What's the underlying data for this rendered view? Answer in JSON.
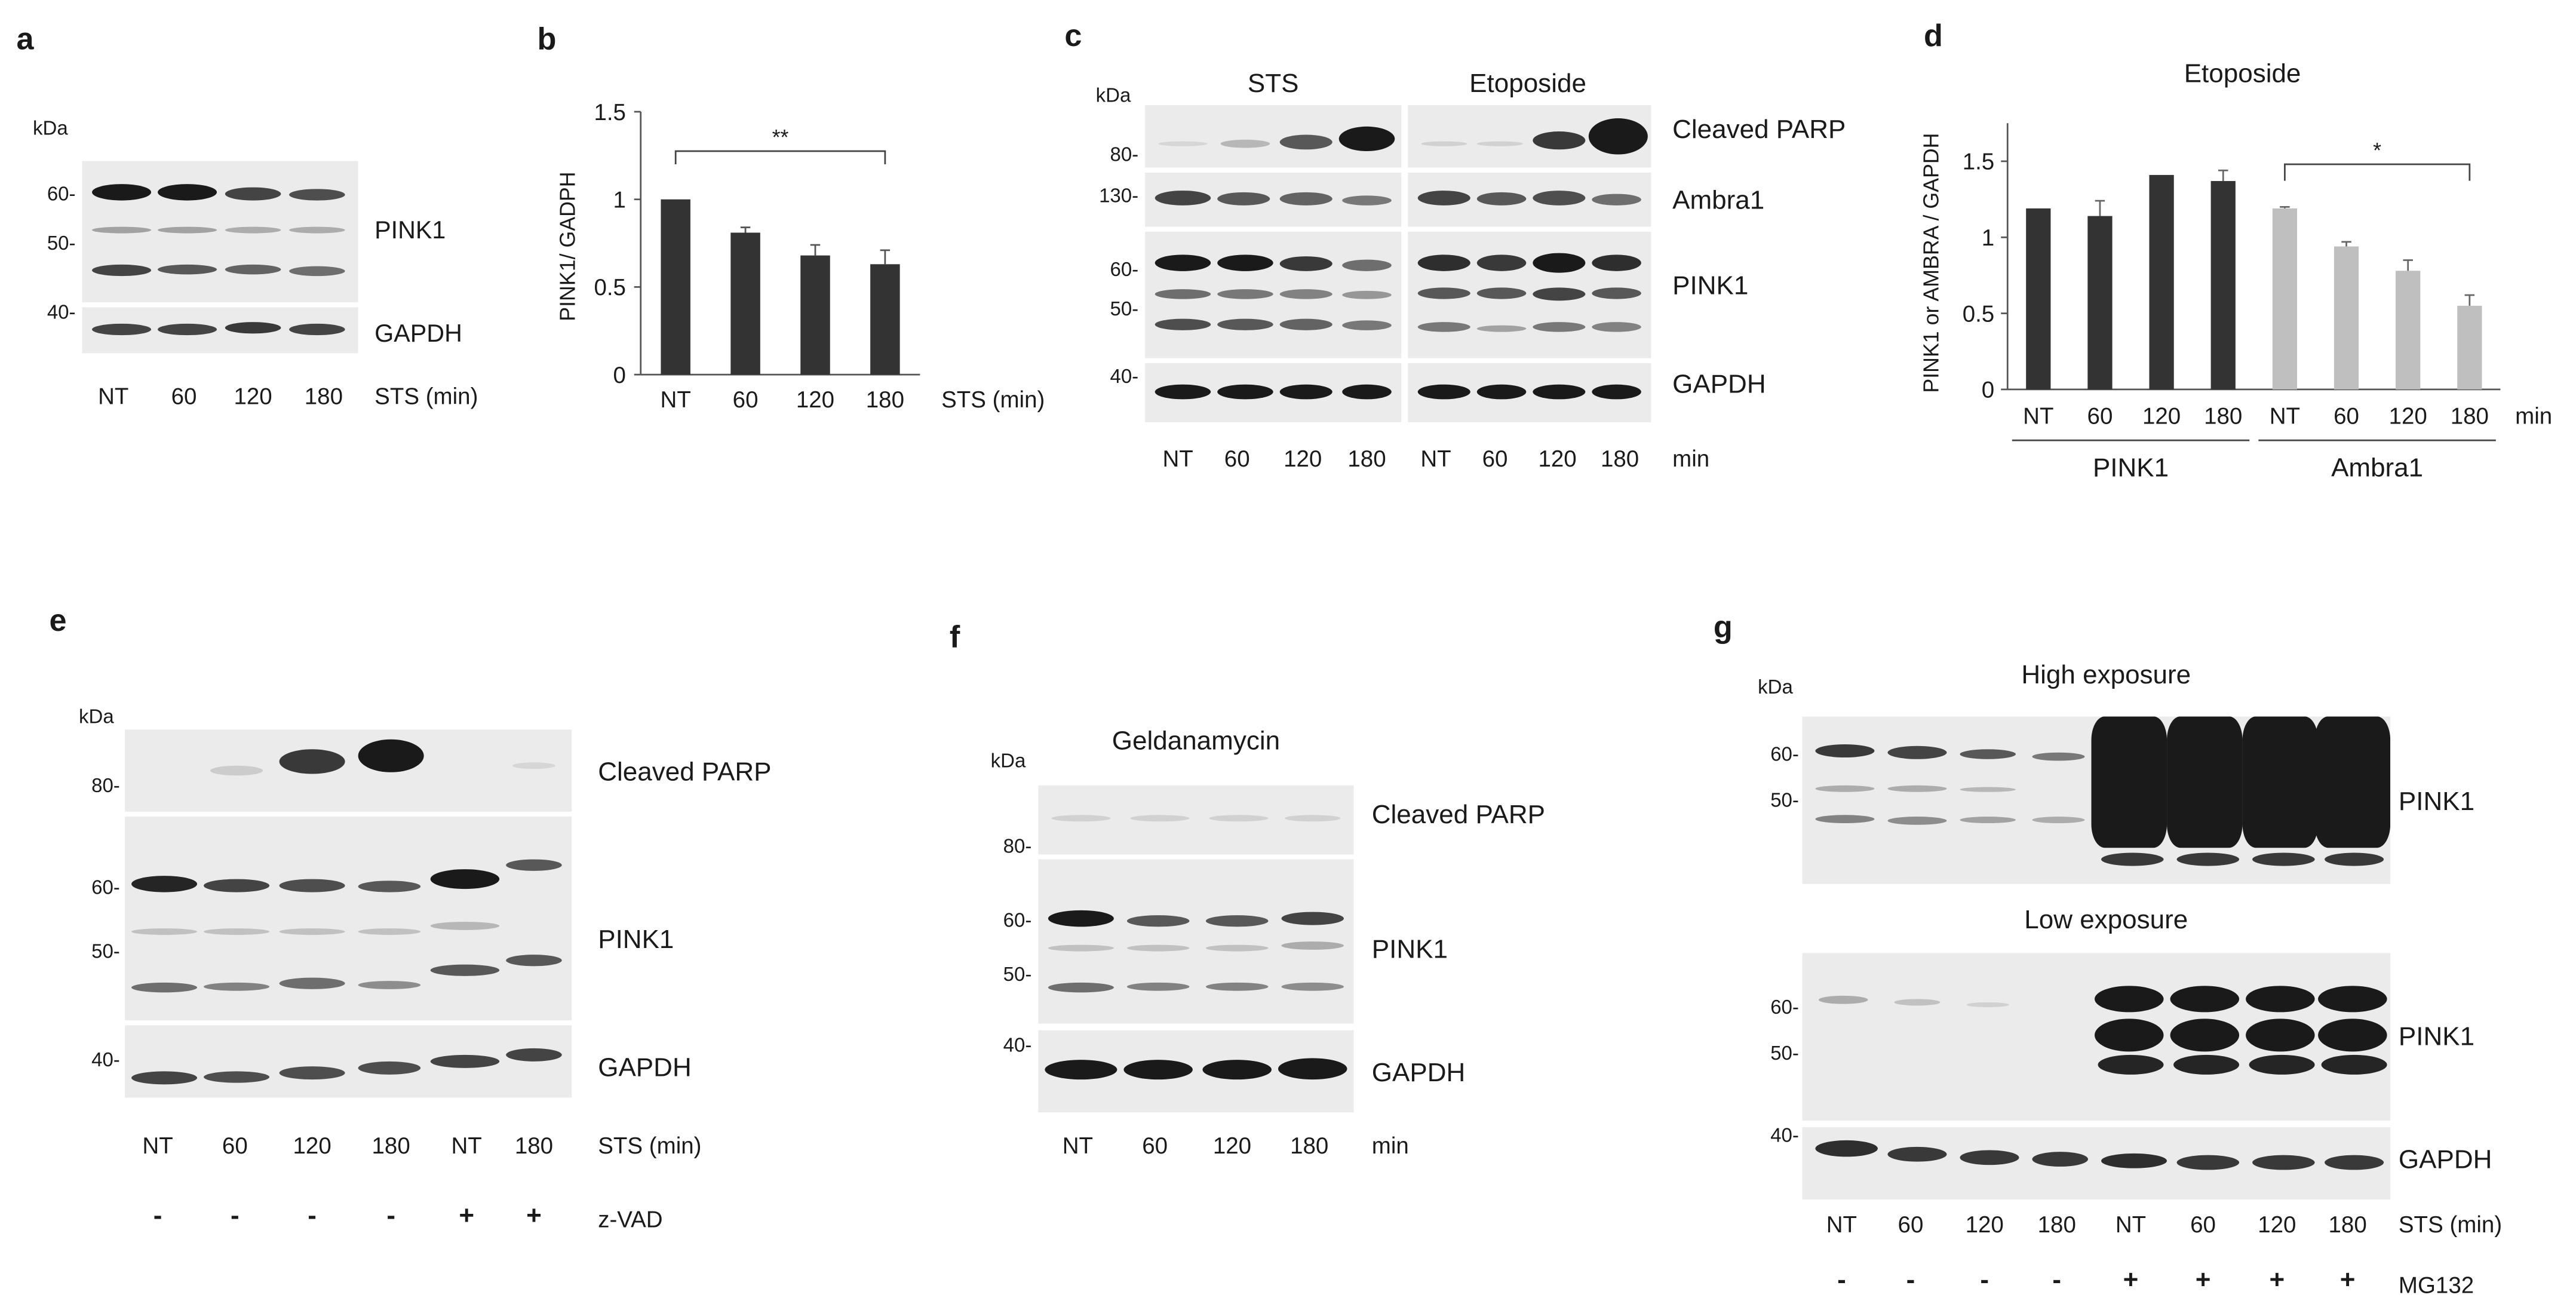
{
  "panel_labels": [
    "a",
    "b",
    "c",
    "d",
    "e",
    "f",
    "g"
  ],
  "kda": "kDa",
  "panel_a": {
    "markers": [
      "60-",
      "50-",
      "40-"
    ],
    "labels": [
      "PINK1",
      "GAPDH"
    ],
    "lanes": [
      "NT",
      "60",
      "120",
      "180"
    ],
    "condition": "STS (min)"
  },
  "panel_b": {
    "ylabel": "PINK1/ GADPH",
    "condition": "STS (min)",
    "significance": "**"
  },
  "panel_c": {
    "groups": [
      "STS",
      "Etoposide"
    ],
    "markers": [
      "80-",
      "130-",
      "60-",
      "50-",
      "40-"
    ],
    "labels": [
      "Cleaved PARP",
      "Ambra1",
      "PINK1",
      "GAPDH"
    ],
    "lanes": [
      "NT",
      "60",
      "120",
      "180",
      "NT",
      "60",
      "120",
      "180"
    ],
    "unit": "min"
  },
  "panel_d": {
    "title": "Etoposide",
    "ylabel": "PINK1 or AMBRA / GAPDH",
    "unit": "min",
    "significance": "*",
    "groups": [
      "PINK1",
      "Ambra1"
    ]
  },
  "panel_e": {
    "markers": [
      "80-",
      "60-",
      "50-",
      "40-"
    ],
    "labels": [
      "Cleaved PARP",
      "PINK1",
      "GAPDH"
    ],
    "lanes": [
      "NT",
      "60",
      "120",
      "180",
      "NT",
      "180"
    ],
    "condition": "STS (min)",
    "treatment": [
      "-",
      "-",
      "-",
      "-",
      "+",
      "+"
    ],
    "treatment_label": "z-VAD"
  },
  "panel_f": {
    "title": "Geldanamycin",
    "markers": [
      "80-",
      "60-",
      "50-",
      "40-"
    ],
    "labels": [
      "Cleaved PARP",
      "PINK1",
      "GAPDH"
    ],
    "lanes": [
      "NT",
      "60",
      "120",
      "180"
    ],
    "unit": "min"
  },
  "panel_g": {
    "titles": [
      "High exposure",
      "Low exposure"
    ],
    "markers_high": [
      "60-",
      "50-"
    ],
    "markers_low": [
      "60-",
      "50-",
      "40-"
    ],
    "labels": [
      "PINK1",
      "PINK1",
      "GAPDH"
    ],
    "lanes": [
      "NT",
      "60",
      "120",
      "180",
      "NT",
      "60",
      "120",
      "180"
    ],
    "condition": "STS (min)",
    "treatment": [
      "-",
      "-",
      "-",
      "-",
      "+",
      "+",
      "+",
      "+"
    ],
    "treatment_label": "MG132"
  },
  "chart_data": [
    {
      "panel": "b",
      "type": "bar",
      "categories": [
        "NT",
        "60",
        "120",
        "180"
      ],
      "values": [
        1.0,
        0.81,
        0.68,
        0.63
      ],
      "errors": [
        0.0,
        0.03,
        0.06,
        0.08
      ],
      "title": "",
      "xlabel": "STS (min)",
      "ylabel": "PINK1/ GADPH",
      "ylim": [
        0,
        1.5
      ],
      "yticks": [
        0,
        0.5,
        1,
        1.5
      ],
      "ytick_labels": [
        "0",
        "0.5",
        "1",
        "1.5"
      ],
      "colors": [
        "#333333"
      ],
      "significance": {
        "label": "**",
        "from": "NT",
        "to": "180"
      }
    },
    {
      "panel": "d",
      "type": "bar",
      "categories": [
        "NT",
        "60",
        "120",
        "180",
        "NT",
        "60",
        "120",
        "180"
      ],
      "groups": [
        "PINK1",
        "Ambra1"
      ],
      "series": [
        {
          "values": [
            1.19,
            1.14,
            1.41,
            1.37,
            null,
            null,
            null,
            null
          ],
          "errors": [
            0.0,
            0.1,
            0.0,
            0.07,
            null,
            null,
            null,
            null
          ],
          "color": "#333333"
        },
        {
          "values": [
            null,
            null,
            null,
            null,
            1.19,
            0.94,
            0.78,
            0.55
          ],
          "errors": [
            null,
            null,
            null,
            null,
            0.01,
            0.03,
            0.07,
            0.07
          ],
          "color": "#bfbfbf"
        }
      ],
      "title": "Etoposide",
      "xlabel": "min",
      "ylabel": "PINK1 or AMBRA / GAPDH",
      "ylim": [
        0,
        1.75
      ],
      "yticks": [
        0,
        0.5,
        1,
        1.5
      ],
      "ytick_labels": [
        "0",
        "0.5",
        "1",
        "1.5"
      ],
      "significance": {
        "label": "*",
        "from": 4,
        "to": 7
      }
    }
  ]
}
